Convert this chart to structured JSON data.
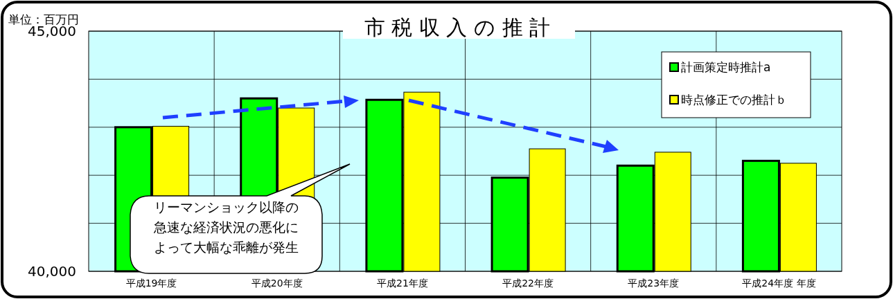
{
  "chart_data": {
    "type": "bar",
    "title": "市 税 収 入 の 推 計",
    "ylabel": "単位：百万円",
    "categories": [
      "平成19年度",
      "平成20年度",
      "平成21年度",
      "平成22年度",
      "平成23年度",
      "平成24年度 年度"
    ],
    "series": [
      {
        "name": "計画策定時推計a",
        "color": "#00ff00",
        "values": [
          43000,
          43600,
          43570,
          41950,
          42200,
          42300
        ]
      },
      {
        "name": "時点修正での推計ｂ",
        "color": "#ffff00",
        "values": [
          43020,
          43400,
          43730,
          42550,
          42480,
          42250
        ]
      }
    ],
    "ylim": [
      40000,
      45000
    ],
    "yticks": [
      {
        "value": 40000,
        "label": "40,000"
      },
      {
        "value": 41000,
        "label": null
      },
      {
        "value": 42000,
        "label": null
      },
      {
        "value": 43000,
        "label": null
      },
      {
        "value": 44000,
        "label": null
      },
      {
        "value": 45000,
        "label": "45,000"
      }
    ],
    "grid": true,
    "legend": "top right",
    "annotations": [
      "リーマンショック以降の急速な経済状況の悪化によって大幅な乖離が発生"
    ]
  }
}
